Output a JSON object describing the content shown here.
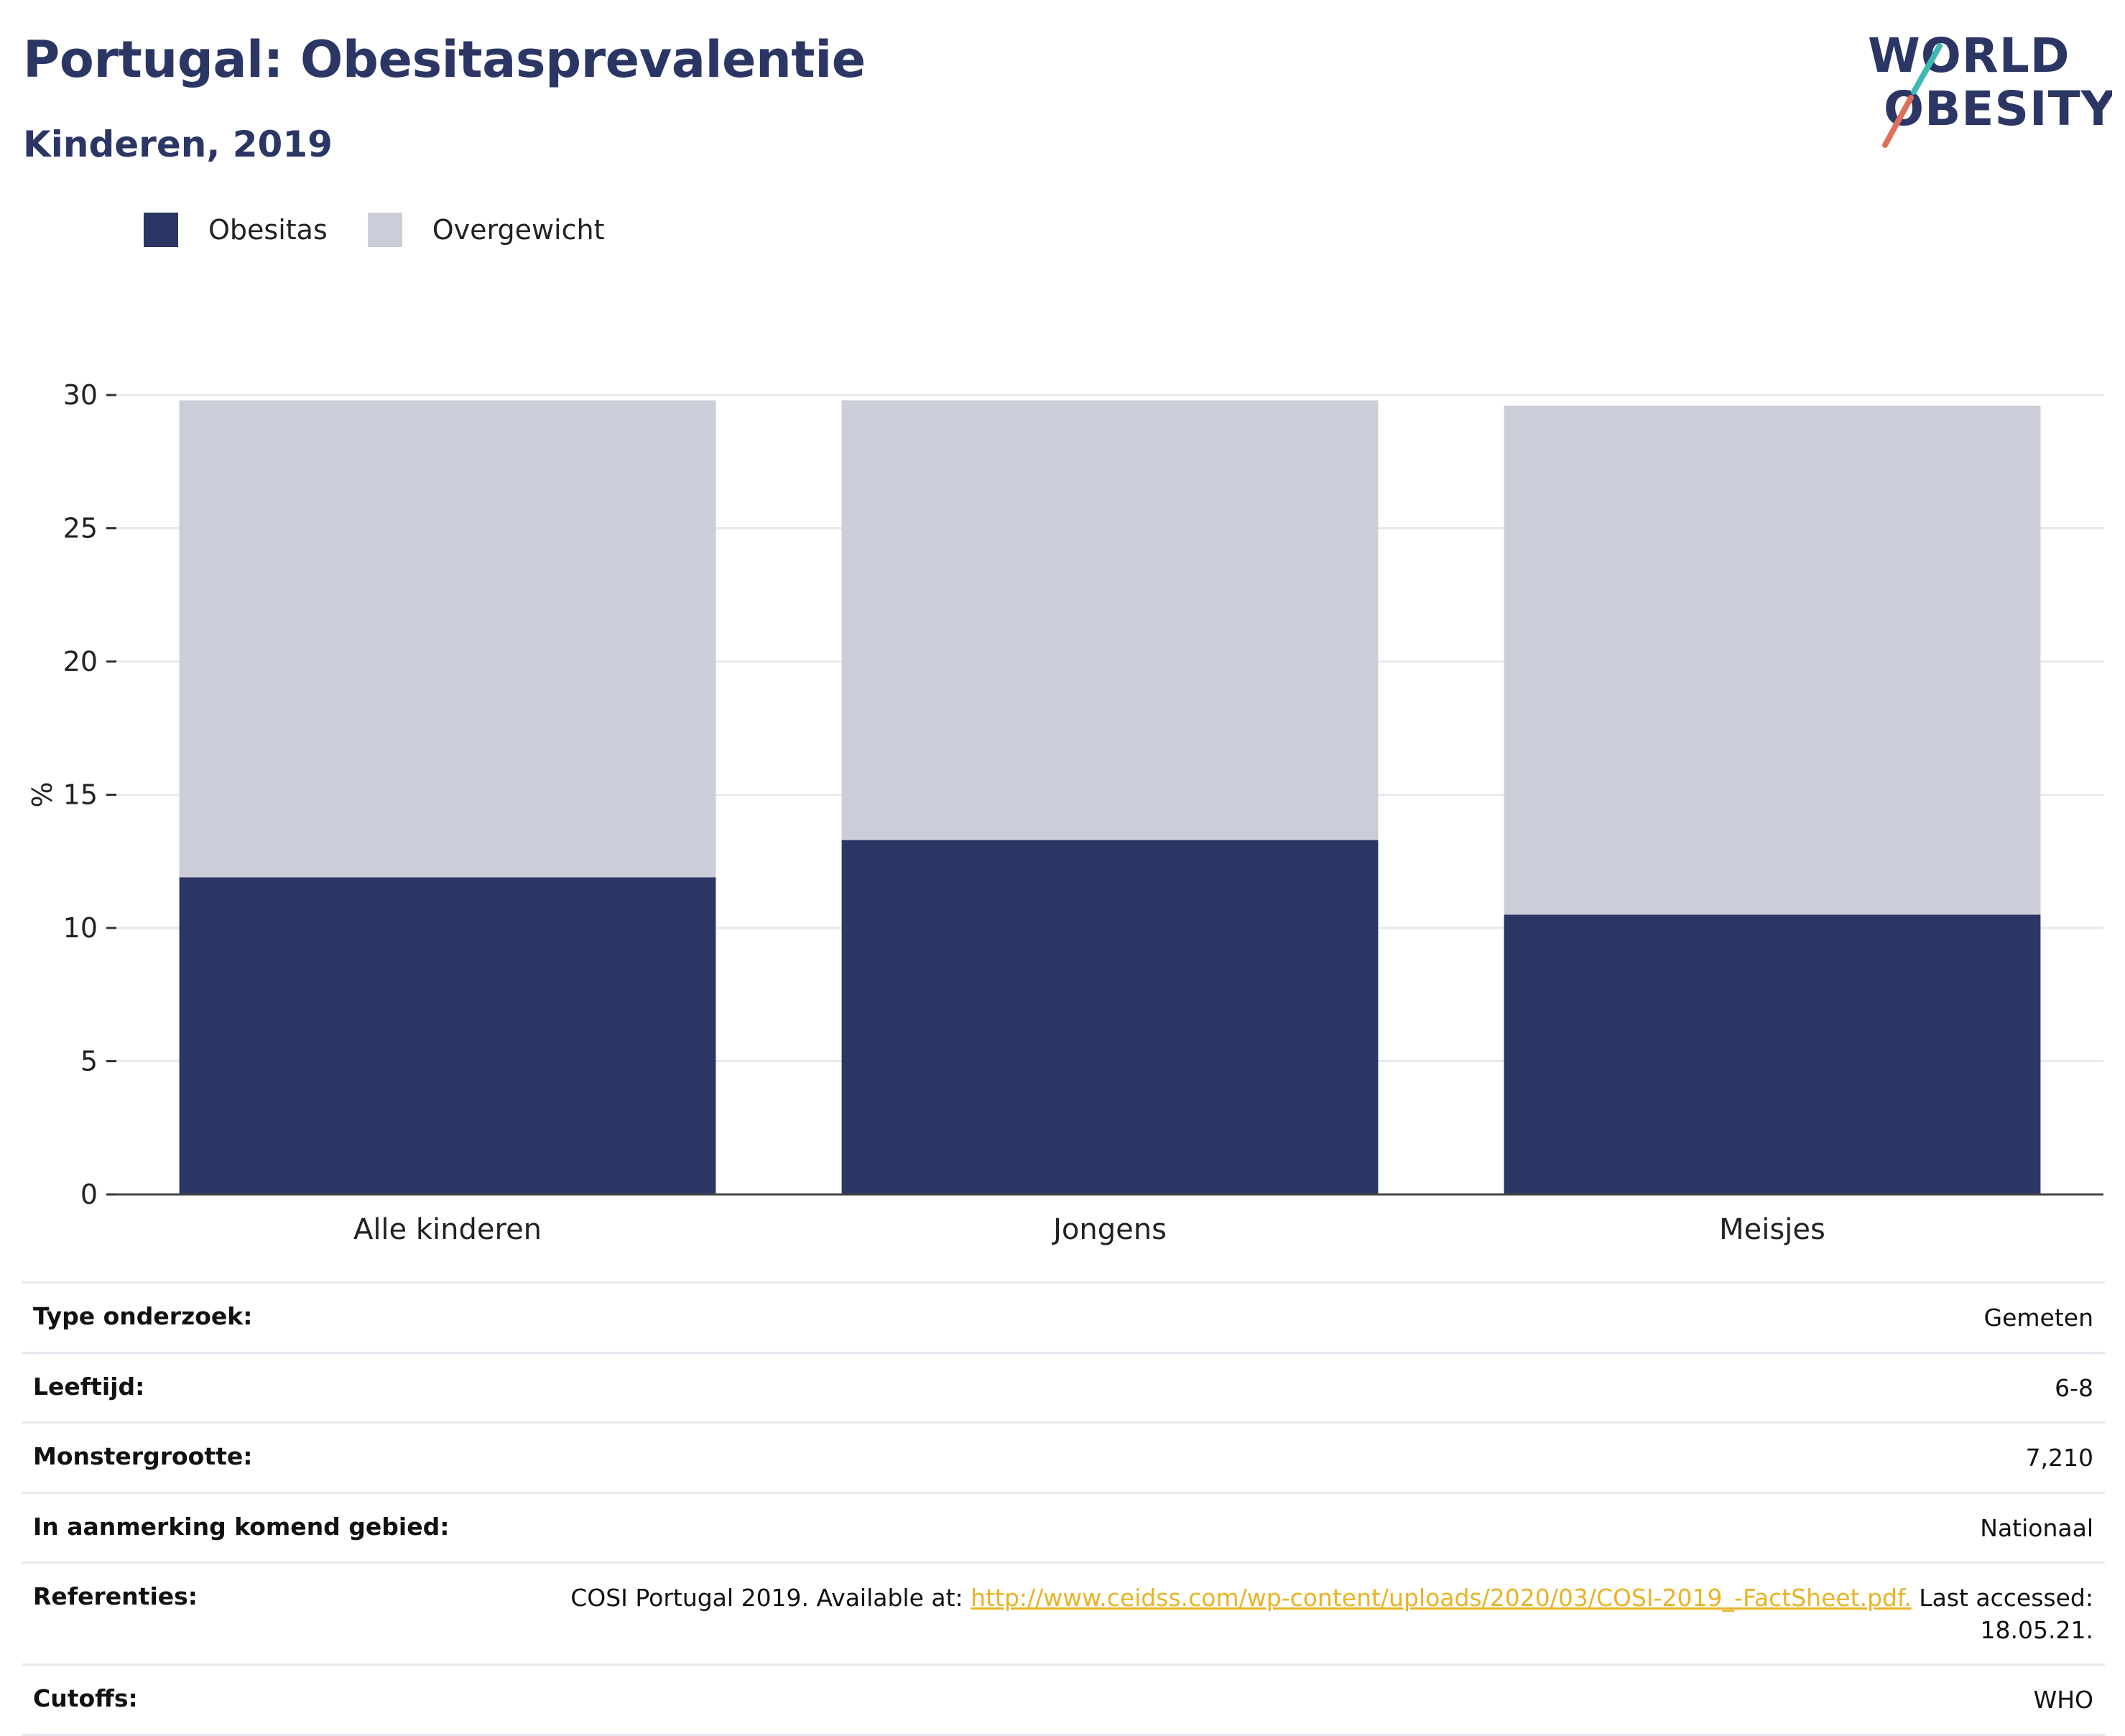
{
  "header": {
    "title": "Portugal: Obesitasprevalentie",
    "subtitle": "Kinderen, 2019"
  },
  "logo": {
    "line1": "WORLD",
    "line2": "OBESITY"
  },
  "colors": {
    "obesitas": "#2b3664",
    "overgewicht": "#cbcdd8",
    "accent_teal": "#3fb8b3",
    "accent_coral": "#e0705e",
    "link": "#e8b325"
  },
  "chart_data": {
    "type": "bar",
    "stacked": true,
    "categories": [
      "Alle kinderen",
      "Jongens",
      "Meisjes"
    ],
    "series": [
      {
        "name": "Obesitas",
        "values": [
          11.9,
          13.3,
          10.5
        ]
      },
      {
        "name": "Overgewicht",
        "values": [
          17.9,
          16.5,
          19.1
        ]
      }
    ],
    "ylabel": "%",
    "ylim": [
      0,
      30
    ],
    "yticks": [
      0,
      5,
      10,
      15,
      20,
      25,
      30
    ],
    "grid": true,
    "legend": "top-left"
  },
  "meta": {
    "type_onderzoek": {
      "label": "Type onderzoek:",
      "value": "Gemeten"
    },
    "leeftijd": {
      "label": "Leeftijd:",
      "value": "6-8"
    },
    "monstergrootte": {
      "label": "Monstergrootte:",
      "value": "7,210"
    },
    "gebied": {
      "label": "In aanmerking komend gebied:",
      "value": "Nationaal"
    },
    "referenties": {
      "label": "Referenties:",
      "prefix": "COSI Portugal 2019. Available at: ",
      "link": "http://www.ceidss.com/wp-content/uploads/2020/03/COSI-2019_-FactSheet.pdf.",
      "suffix": " Last accessed: 18.05.21."
    },
    "cutoffs": {
      "label": "Cutoffs:",
      "value": "WHO"
    }
  }
}
